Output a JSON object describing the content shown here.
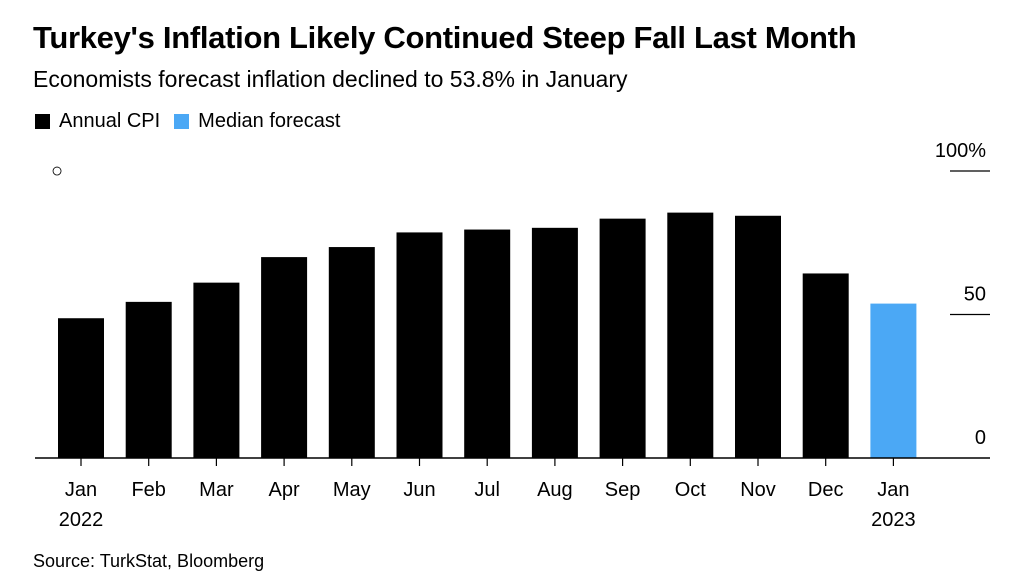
{
  "header": {
    "title": "Turkey's Inflation Likely Continued Steep Fall Last Month",
    "subtitle": "Economists forecast inflation declined to 53.8% in January"
  },
  "legend": {
    "items": [
      {
        "label": "Annual CPI",
        "color": "#000000"
      },
      {
        "label": "Median forecast",
        "color": "#4BA8F5"
      }
    ],
    "placement": "top-left"
  },
  "annotation_marker": "○",
  "footer": {
    "source": "Source: TurkStat, Bloomberg"
  },
  "chart_data": {
    "type": "bar",
    "title": "Turkey's Inflation Likely Continued Steep Fall Last Month",
    "subtitle": "Economists forecast inflation declined to 53.8% in January",
    "categories": [
      "Jan",
      "Feb",
      "Mar",
      "Apr",
      "May",
      "Jun",
      "Jul",
      "Aug",
      "Sep",
      "Oct",
      "Nov",
      "Dec",
      "Jan"
    ],
    "year_labels": [
      "2022",
      "",
      "",
      "",
      "",
      "",
      "",
      "",
      "",
      "",
      "",
      "",
      "2023"
    ],
    "series": [
      {
        "name": "Annual CPI",
        "color": "#000000",
        "values": [
          48.7,
          54.4,
          61.1,
          70.0,
          73.5,
          78.6,
          79.6,
          80.2,
          83.4,
          85.5,
          84.4,
          64.3,
          null
        ]
      },
      {
        "name": "Median forecast",
        "color": "#4BA8F5",
        "values": [
          null,
          null,
          null,
          null,
          null,
          null,
          null,
          null,
          null,
          null,
          null,
          null,
          53.8
        ]
      }
    ],
    "yticks": [
      {
        "value": 0,
        "label": "0"
      },
      {
        "value": 50,
        "label": "50"
      },
      {
        "value": 100,
        "label": "100%"
      }
    ],
    "ylim": [
      0,
      100
    ],
    "axis_side": "right",
    "grid": false,
    "xlabel": "",
    "ylabel": ""
  }
}
